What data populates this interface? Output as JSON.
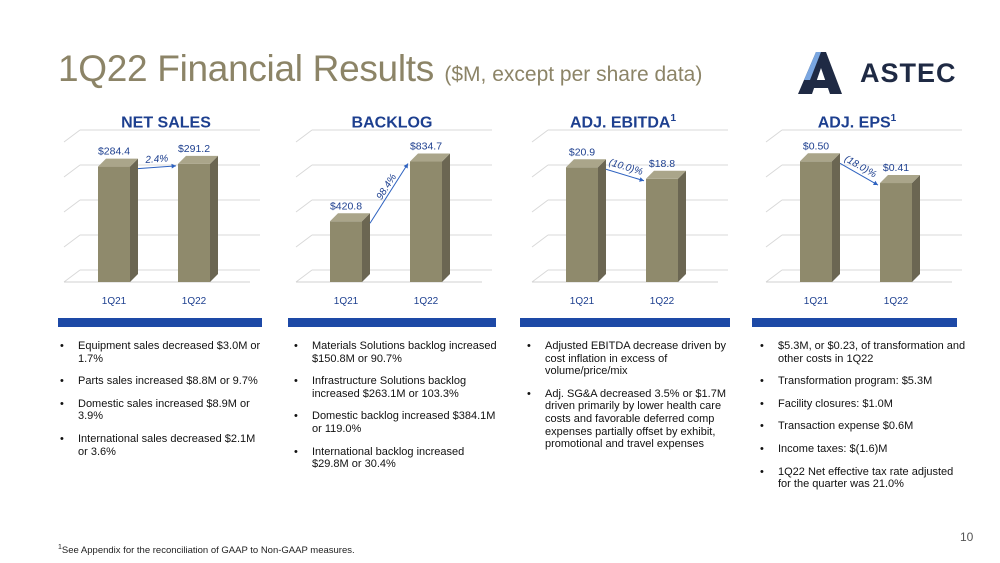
{
  "title": {
    "main": "1Q22 Financial Results",
    "sub": "($M, except per share data)"
  },
  "logo": {
    "text": "ASTEC",
    "colors": {
      "dark": "#1f2a44",
      "blue": "#5b8fd6"
    }
  },
  "colors": {
    "bar_front": "#8f8a6c",
    "bar_side": "#6b6652",
    "bar_top": "#aaa58a",
    "accent_blue": "#1d49a6",
    "heading_blue": "#1d3f8f"
  },
  "panels": [
    {
      "heading": "NET SALES",
      "sup": "",
      "bullets": [
        "Equipment sales decreased $3.0M or 1.7%",
        "Parts sales increased $8.8M or 9.7%",
        "Domestic sales increased $8.9M or 3.9%",
        "International sales decreased $2.1M or 3.6%"
      ]
    },
    {
      "heading": "BACKLOG",
      "sup": "",
      "bullets": [
        "Materials Solutions backlog increased $150.8M or 90.7%",
        "Infrastructure Solutions backlog increased $263.1M or 103.3%",
        "Domestic backlog increased $384.1M or 119.0%",
        "International backlog increased $29.8M or 30.4%"
      ]
    },
    {
      "heading": "ADJ. EBITDA",
      "sup": "1",
      "bullets": [
        "Adjusted EBITDA decrease driven by cost inflation in excess of volume/price/mix",
        "Adj. SG&A decreased 3.5% or $1.7M driven primarily by lower health care costs and favorable deferred comp expenses partially offset by exhibit, promotional and travel expenses"
      ]
    },
    {
      "heading": "ADJ. EPS",
      "sup": "1",
      "bullets": [
        "$5.3M, or $0.23, of transformation and other costs in 1Q22",
        "Transformation program: $5.3M",
        "Facility closures: $1.0M",
        "Transaction expense $0.6M",
        "Income taxes: $(1.6)M",
        "1Q22 Net effective tax rate adjusted for the quarter was 21.0%"
      ]
    }
  ],
  "chart_data": [
    {
      "type": "bar",
      "categories": [
        "1Q21",
        "1Q22"
      ],
      "values": [
        284.4,
        291.2
      ],
      "labels": [
        "$284.4",
        "$291.2"
      ],
      "change": "2.4%",
      "title": "NET SALES",
      "ylim": [
        0,
        345
      ],
      "grid": true
    },
    {
      "type": "bar",
      "categories": [
        "1Q21",
        "1Q22"
      ],
      "values": [
        420.8,
        834.7
      ],
      "labels": [
        "$420.8",
        "$834.7"
      ],
      "change": "98.4%",
      "title": "BACKLOG",
      "ylim": [
        0,
        970
      ],
      "grid": true
    },
    {
      "type": "bar",
      "categories": [
        "1Q21",
        "1Q22"
      ],
      "values": [
        20.9,
        18.8
      ],
      "labels": [
        "$20.9",
        "$18.8"
      ],
      "change": "(10.0)%",
      "title": "ADJ. EBITDA",
      "ylim": [
        0,
        25.5
      ],
      "grid": true
    },
    {
      "type": "bar",
      "categories": [
        "1Q21",
        "1Q22"
      ],
      "values": [
        0.5,
        0.41
      ],
      "labels": [
        "$0.50",
        "$0.41"
      ],
      "change": "(18.0)%",
      "title": "ADJ. EPS",
      "ylim": [
        0,
        0.58
      ],
      "grid": true
    }
  ],
  "footnote": {
    "sup": "1",
    "text": "See Appendix for the reconciliation of GAAP to Non-GAAP measures."
  },
  "page_number": "10"
}
